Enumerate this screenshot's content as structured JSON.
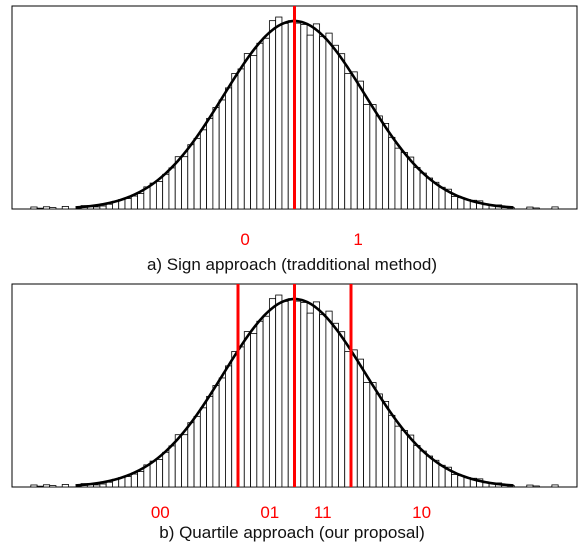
{
  "colors": {
    "bars_stroke": "#000000",
    "bars_fill": "#ffffff",
    "curve": "#000000",
    "threshold": "#ff0000",
    "region_label": "#ff0000"
  },
  "chart_data": [
    {
      "type": "bar",
      "subtype": "histogram-with-normal-fit",
      "title": "",
      "caption": "a) Sign approach (tradditional method)",
      "xlabel": "",
      "ylabel": "",
      "xlim": [
        -4,
        4
      ],
      "ylim": [
        0,
        1.08
      ],
      "grid": false,
      "bins": 90,
      "bin_range": [
        -4,
        4
      ],
      "fit": {
        "type": "normal",
        "mean": 0,
        "std": 1
      },
      "thresholds": [
        0
      ],
      "region_labels": [
        {
          "text": "0",
          "x": -0.7
        },
        {
          "text": "1",
          "x": 0.9
        }
      ]
    },
    {
      "type": "bar",
      "subtype": "histogram-with-normal-fit",
      "title": "",
      "caption": "b) Quartile approach (our proposal)",
      "xlabel": "",
      "ylabel": "",
      "xlim": [
        -4,
        4
      ],
      "ylim": [
        0,
        1.08
      ],
      "grid": false,
      "bins": 90,
      "bin_range": [
        -4,
        4
      ],
      "fit": {
        "type": "normal",
        "mean": 0,
        "std": 1
      },
      "thresholds": [
        -0.8,
        0,
        0.8
      ],
      "region_labels": [
        {
          "text": "00",
          "x": -1.9
        },
        {
          "text": "01",
          "x": -0.35
        },
        {
          "text": "11",
          "x": 0.4
        },
        {
          "text": "10",
          "x": 1.8
        }
      ]
    }
  ]
}
